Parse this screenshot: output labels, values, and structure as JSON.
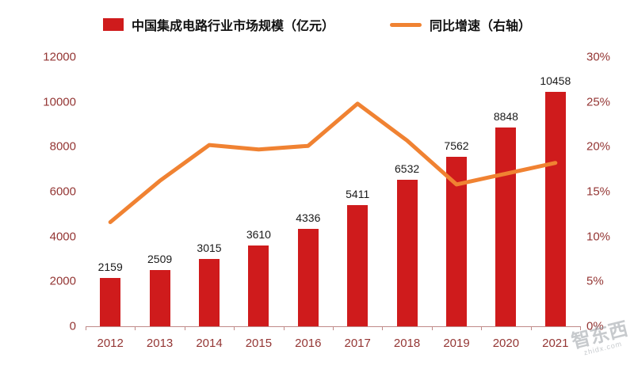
{
  "legend": {
    "series1_label": "中国集成电路行业市场规模（亿元）",
    "series2_label": "同比增速（右轴）"
  },
  "watermark": {
    "line1": "智东西",
    "line2": "zhidx.com"
  },
  "colors": {
    "bar": "#cf1b1c",
    "line": "#f08232",
    "axis_label": "#943634",
    "data_label": "#1a1a1a"
  },
  "chart_data": {
    "type": "bar",
    "title": "",
    "categories": [
      "2012",
      "2013",
      "2014",
      "2015",
      "2016",
      "2017",
      "2018",
      "2019",
      "2020",
      "2021"
    ],
    "series": [
      {
        "name": "中国集成电路行业市场规模（亿元）",
        "type": "bar",
        "axis": "left",
        "values": [
          2159,
          2509,
          3015,
          3610,
          4336,
          5411,
          6532,
          7562,
          8848,
          10458
        ]
      },
      {
        "name": "同比增速（右轴）",
        "type": "line",
        "axis": "right",
        "values_pct": [
          11.6,
          16.2,
          20.2,
          19.7,
          20.1,
          24.8,
          20.7,
          15.8,
          17.0,
          18.2
        ]
      }
    ],
    "left_axis": {
      "min": 0,
      "max": 12000,
      "step": 2000,
      "labels": [
        "0",
        "2000",
        "4000",
        "6000",
        "8000",
        "10000",
        "12000"
      ]
    },
    "right_axis": {
      "min": 0,
      "max": 30,
      "step": 5,
      "labels": [
        "0%",
        "5%",
        "10%",
        "15%",
        "20%",
        "25%",
        "30%"
      ]
    },
    "grid": false,
    "legend_position": "top",
    "data_labels": true
  }
}
